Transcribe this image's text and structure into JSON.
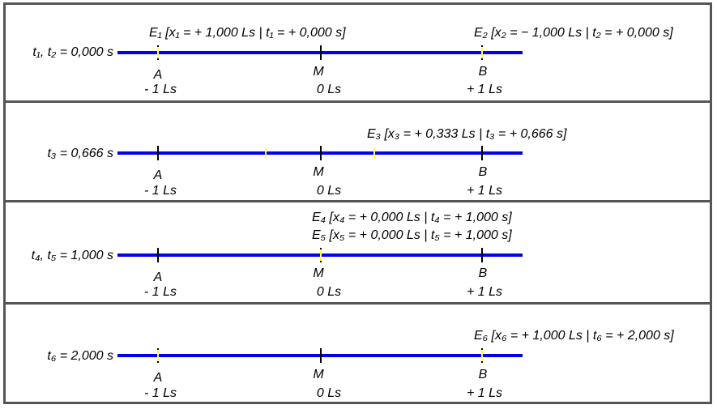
{
  "panels": [
    {
      "time_label": "t₁, t₂ = 0,000 s",
      "events": [
        {
          "text": "E₁ [x₁ = + 1,000 Ls | t₁ = + 0,000 s]"
        },
        {
          "text": "E₂ [x₂ = − 1,000 Ls | t₂ = + 0,000 s]"
        }
      ],
      "points": [
        {
          "name": "A",
          "pos": "- 1 Ls"
        },
        {
          "name": "M",
          "pos": "0 Ls"
        },
        {
          "name": "B",
          "pos": "+ 1 Ls"
        }
      ]
    },
    {
      "time_label": "t₃ = 0,666 s",
      "events": [
        {
          "text": "E₃ [x₃ = + 0,333 Ls | t₃ = + 0,666 s]"
        }
      ],
      "points": [
        {
          "name": "A",
          "pos": "- 1 Ls"
        },
        {
          "name": "M",
          "pos": "0 Ls"
        },
        {
          "name": "B",
          "pos": "+ 1 Ls"
        }
      ]
    },
    {
      "time_label": "t₄, t₅ = 1,000 s",
      "events": [
        {
          "text": "E₄ [x₄ = + 0,000 Ls | t₄ = + 1,000 s]"
        },
        {
          "text": "E₅ [x₅ = + 0,000 Ls | t₅ = + 1,000 s]"
        }
      ],
      "points": [
        {
          "name": "A",
          "pos": "- 1 Ls"
        },
        {
          "name": "M",
          "pos": "0 Ls"
        },
        {
          "name": "B",
          "pos": "+ 1 Ls"
        }
      ]
    },
    {
      "time_label": "t₆ = 2,000 s",
      "events": [
        {
          "text": "E₆ [x₆ = + 1,000 Ls | t₆ = + 2,000 s]"
        }
      ],
      "points": [
        {
          "name": "A",
          "pos": "- 1 Ls"
        },
        {
          "name": "M",
          "pos": "0 Ls"
        },
        {
          "name": "B",
          "pos": "+ 1 Ls"
        }
      ]
    }
  ],
  "colors": {
    "axis": "#0000ee",
    "marker": "#ffff55",
    "border": "#555555"
  }
}
